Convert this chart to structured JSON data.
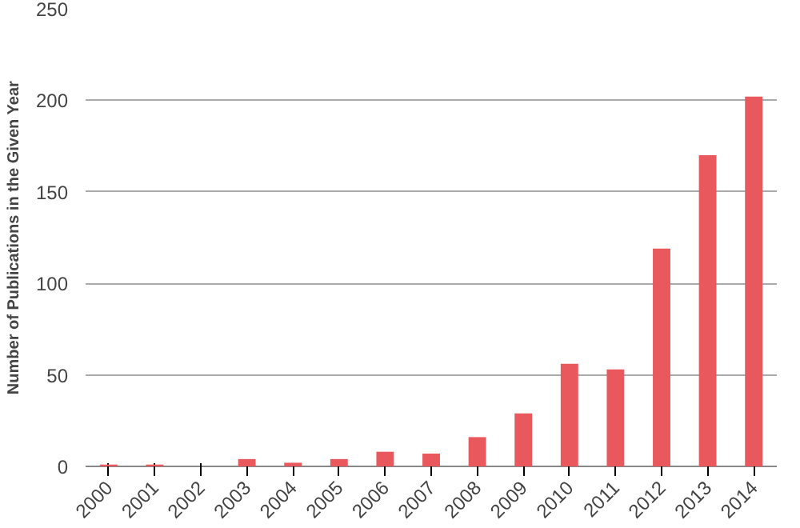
{
  "chart_data": {
    "type": "bar",
    "ylabel": "Number of Publications in the Given Year",
    "categories": [
      "2000",
      "2001",
      "2002",
      "2003",
      "2004",
      "2005",
      "2006",
      "2007",
      "2008",
      "2009",
      "2010",
      "2011",
      "2012",
      "2013",
      "2014"
    ],
    "values": [
      1,
      1,
      0,
      4,
      2,
      4,
      8,
      7,
      16,
      29,
      56,
      53,
      119,
      170,
      202
    ],
    "color": "#e8585c",
    "ylim": [
      0,
      250
    ],
    "yticks": [
      0,
      50,
      100,
      150,
      200,
      250
    ],
    "grid": "y"
  }
}
